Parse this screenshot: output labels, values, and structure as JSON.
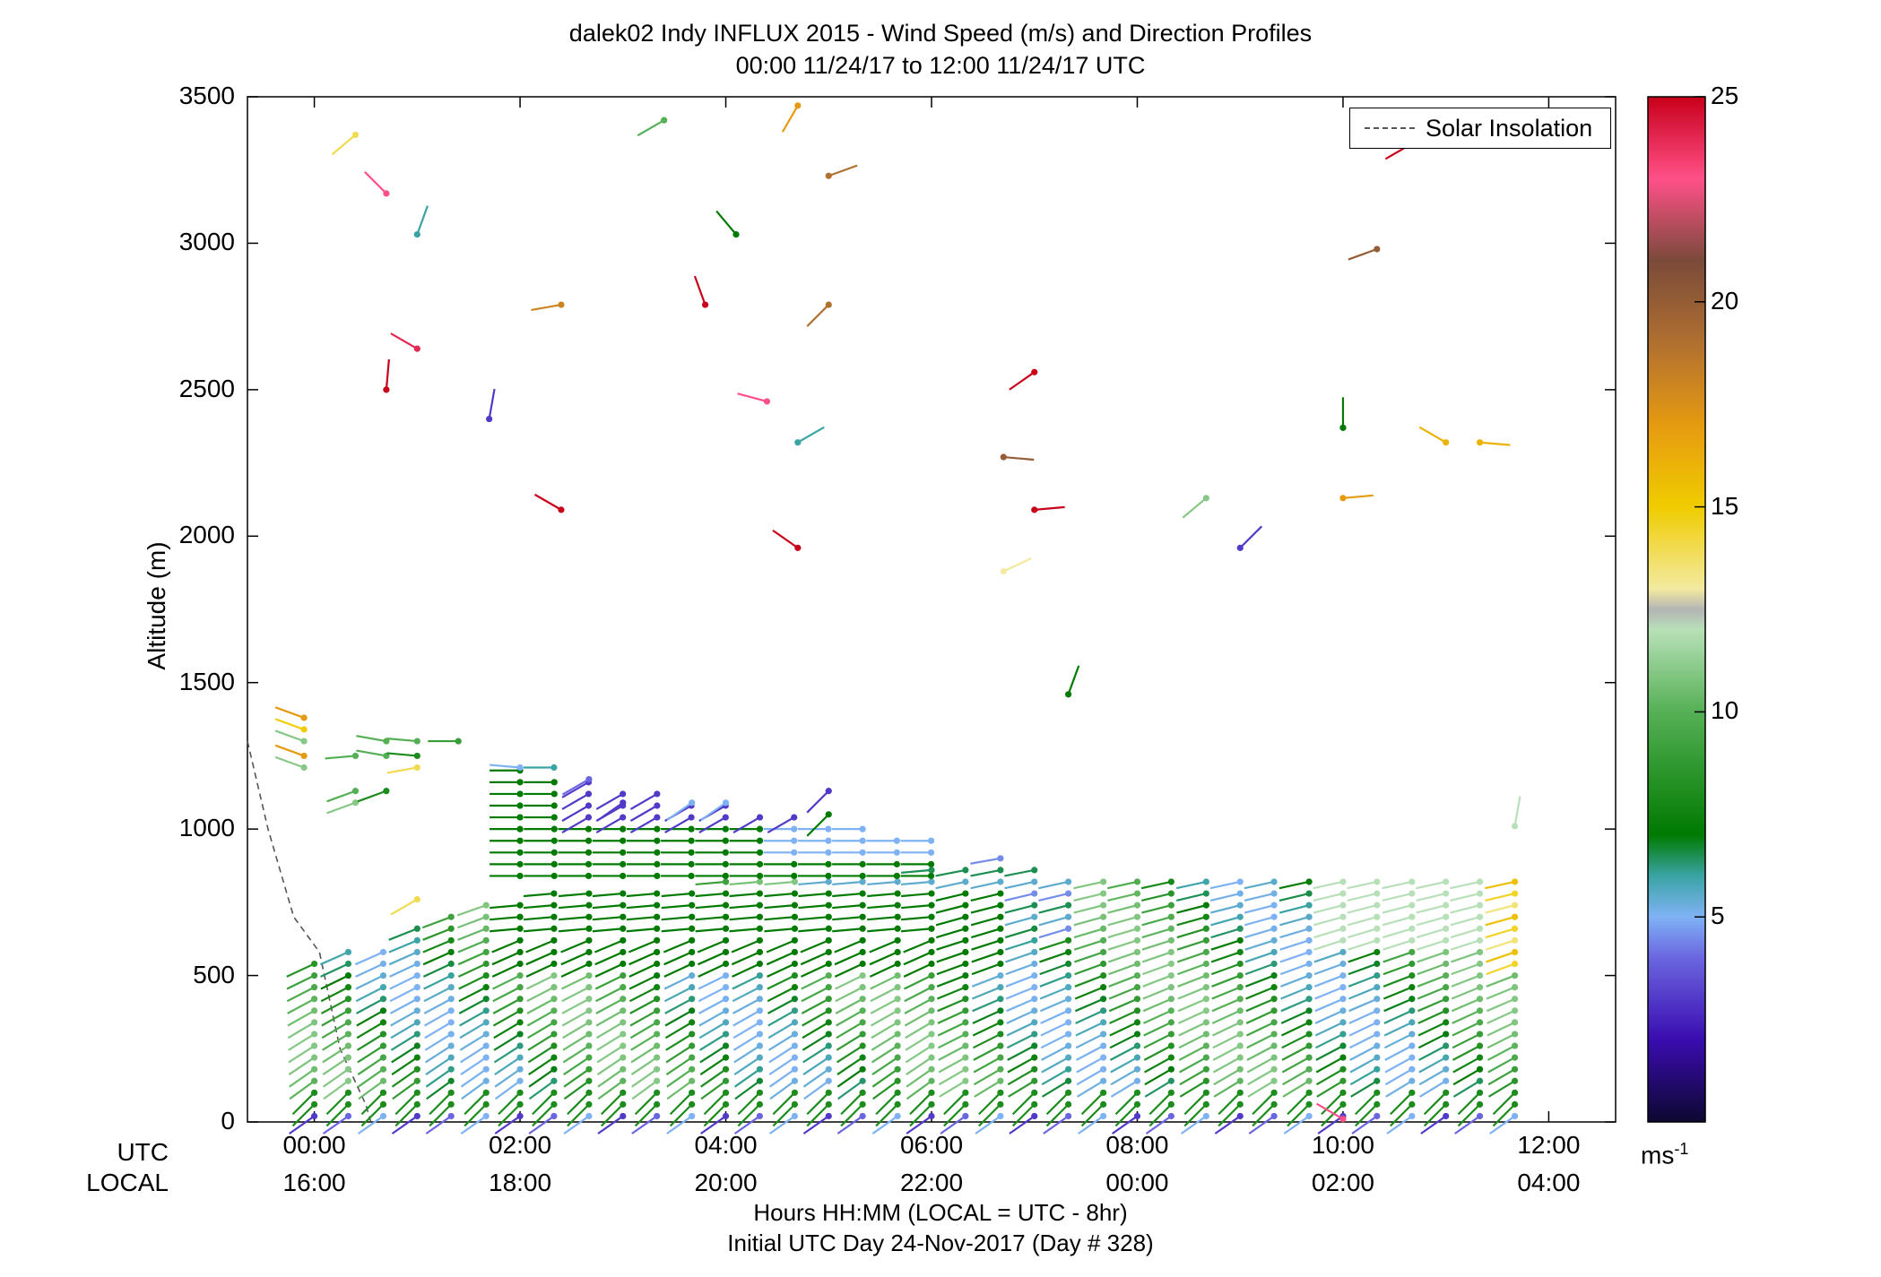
{
  "chart_data": {
    "type": "wind-barb-profile",
    "title": "dalek02 Indy INFLUX 2015 - Wind Speed (m/s) and Direction Profiles",
    "subtitle": "00:00 11/24/17 to 12:00 11/24/17  UTC",
    "ylabel": "Altitude (m)",
    "ylim": [
      0,
      3500
    ],
    "yticks": [
      "0",
      "500",
      "1000",
      "1500",
      "2000",
      "2500",
      "3000",
      "3500"
    ],
    "xlim_hours": [
      -0.65,
      12.65
    ],
    "xticks_utc": [
      "00:00",
      "02:00",
      "04:00",
      "06:00",
      "08:00",
      "10:00",
      "12:00"
    ],
    "xticks_local": [
      "16:00",
      "18:00",
      "20:00",
      "22:00",
      "00:00",
      "02:00",
      "04:00"
    ],
    "xrow_utc": "UTC",
    "xrow_local": "LOCAL",
    "xlabel": "Hours HH:MM  (LOCAL = UTC - 8hr)",
    "xlabel2": "Initial UTC Day 24-Nov-2017 (Day # 328)",
    "legend": {
      "label": "Solar Insolation",
      "placement": "top-right"
    },
    "colorbar": {
      "ticks": [
        "5",
        "10",
        "15",
        "20",
        "25"
      ],
      "range": [
        0,
        25
      ],
      "unit": "ms-1"
    },
    "colors": {
      "stops": [
        [
          "0",
          "#0d0830"
        ],
        [
          "2",
          "#3a0cb0"
        ],
        [
          "4",
          "#6b66e0"
        ],
        [
          "5",
          "#7fb2f5"
        ],
        [
          "6",
          "#3aa4a4"
        ],
        [
          "7",
          "#007a00"
        ],
        [
          "10",
          "#55b055"
        ],
        [
          "12",
          "#b8e0b8"
        ],
        [
          "12.5",
          "#b4b4b4"
        ],
        [
          "13",
          "#f2eaa0"
        ],
        [
          "15",
          "#f0cc00"
        ],
        [
          "17",
          "#e69a10"
        ],
        [
          "19",
          "#b07030"
        ],
        [
          "21",
          "#7a4a3a"
        ],
        [
          "23",
          "#ff5088"
        ],
        [
          "25",
          "#c8001a"
        ]
      ]
    },
    "solar_insolation_curve": [
      [
        -0.65,
        1300
      ],
      [
        -0.45,
        1000
      ],
      [
        -0.2,
        700
      ],
      [
        0.05,
        580
      ],
      [
        0.25,
        250
      ],
      [
        0.5,
        60
      ],
      [
        0.55,
        0
      ]
    ],
    "profile_times": [
      0.0,
      0.33,
      0.67,
      1.0,
      1.33,
      1.67,
      2.0,
      2.33,
      2.67,
      3.0,
      3.33,
      3.67,
      4.0,
      4.33,
      4.67,
      5.0,
      5.33,
      5.67,
      6.0,
      6.33,
      6.67,
      7.0,
      7.33,
      7.67,
      8.0,
      8.33,
      8.67,
      9.0,
      9.33,
      9.67,
      10.0,
      10.33,
      10.67,
      11.0,
      11.33,
      11.67
    ],
    "profile_tops": [
      560,
      610,
      610,
      680,
      700,
      740,
      760,
      780,
      790,
      800,
      810,
      810,
      820,
      820,
      820,
      830,
      830,
      840,
      860,
      880,
      900,
      870,
      850,
      830,
      830,
      830,
      830,
      820,
      820,
      820,
      820,
      820,
      820,
      820,
      820,
      830
    ],
    "low_level_spacing_m": 40,
    "isolated_barbs": [
      {
        "t": 0.4,
        "alt": 3370,
        "speed": 14,
        "dir": 230
      },
      {
        "t": 1.0,
        "alt": 3030,
        "speed": 6,
        "dir": 20
      },
      {
        "t": 0.7,
        "alt": 3170,
        "speed": 23,
        "dir": 315
      },
      {
        "t": 0.7,
        "alt": 2500,
        "speed": 25,
        "dir": 5
      },
      {
        "t": 1.0,
        "alt": 2640,
        "speed": 24,
        "dir": 300
      },
      {
        "t": 1.7,
        "alt": 2400,
        "speed": 3,
        "dir": 10
      },
      {
        "t": 2.4,
        "alt": 2790,
        "speed": 18,
        "dir": 260
      },
      {
        "t": 2.4,
        "alt": 2090,
        "speed": 25,
        "dir": 300
      },
      {
        "t": 3.4,
        "alt": 3420,
        "speed": 10,
        "dir": 240
      },
      {
        "t": 4.1,
        "alt": 3030,
        "speed": 7,
        "dir": 320
      },
      {
        "t": 3.8,
        "alt": 2790,
        "speed": 25,
        "dir": 340
      },
      {
        "t": 4.4,
        "alt": 2460,
        "speed": 23,
        "dir": 285
      },
      {
        "t": 4.7,
        "alt": 3470,
        "speed": 17,
        "dir": 210
      },
      {
        "t": 5.0,
        "alt": 3230,
        "speed": 19,
        "dir": 70
      },
      {
        "t": 5.0,
        "alt": 2790,
        "speed": 19,
        "dir": 225
      },
      {
        "t": 4.7,
        "alt": 2320,
        "speed": 6,
        "dir": 60
      },
      {
        "t": 4.7,
        "alt": 1960,
        "speed": 25,
        "dir": 305
      },
      {
        "t": 6.7,
        "alt": 2270,
        "speed": 20,
        "dir": 95
      },
      {
        "t": 7.0,
        "alt": 2560,
        "speed": 25,
        "dir": 235
      },
      {
        "t": 7.0,
        "alt": 2090,
        "speed": 25,
        "dir": 85
      },
      {
        "t": 6.7,
        "alt": 1880,
        "speed": 13,
        "dir": 65
      },
      {
        "t": 7.33,
        "alt": 1460,
        "speed": 7,
        "dir": 20
      },
      {
        "t": 8.67,
        "alt": 2130,
        "speed": 11,
        "dir": 230
      },
      {
        "t": 9.0,
        "alt": 1960,
        "speed": 3,
        "dir": 45
      },
      {
        "t": 10.0,
        "alt": 2370,
        "speed": 7,
        "dir": 0
      },
      {
        "t": 10.0,
        "alt": 2130,
        "speed": 17,
        "dir": 85
      },
      {
        "t": 10.33,
        "alt": 2980,
        "speed": 20,
        "dir": 250
      },
      {
        "t": 11.0,
        "alt": 2320,
        "speed": 16,
        "dir": 300
      },
      {
        "t": 11.33,
        "alt": 2320,
        "speed": 16,
        "dir": 95
      },
      {
        "t": 10.67,
        "alt": 3340,
        "speed": 25,
        "dir": 240
      },
      {
        "t": 11.67,
        "alt": 1010,
        "speed": 12,
        "dir": 10
      },
      {
        "t": 10.0,
        "alt": 10,
        "speed": 23,
        "dir": 300
      }
    ],
    "upper_layer_barbs": [
      {
        "t": -0.1,
        "alt": 1380,
        "speed": 17,
        "dir": 290
      },
      {
        "t": -0.1,
        "alt": 1340,
        "speed": 15,
        "dir": 290
      },
      {
        "t": -0.1,
        "alt": 1300,
        "speed": 11,
        "dir": 290
      },
      {
        "t": -0.1,
        "alt": 1250,
        "speed": 17,
        "dir": 290
      },
      {
        "t": -0.1,
        "alt": 1210,
        "speed": 11,
        "dir": 290
      },
      {
        "t": 0.4,
        "alt": 1250,
        "speed": 10,
        "dir": 265
      },
      {
        "t": 0.4,
        "alt": 1130,
        "speed": 10,
        "dir": 250
      },
      {
        "t": 0.4,
        "alt": 1090,
        "speed": 11,
        "dir": 250
      },
      {
        "t": 0.7,
        "alt": 1300,
        "speed": 10,
        "dir": 280
      },
      {
        "t": 0.7,
        "alt": 1250,
        "speed": 10,
        "dir": 280
      },
      {
        "t": 0.7,
        "alt": 1130,
        "speed": 8,
        "dir": 250
      },
      {
        "t": 1.0,
        "alt": 1300,
        "speed": 10,
        "dir": 275
      },
      {
        "t": 1.0,
        "alt": 1250,
        "speed": 8,
        "dir": 275
      },
      {
        "t": 1.0,
        "alt": 1210,
        "speed": 14,
        "dir": 260
      },
      {
        "t": 1.4,
        "alt": 1300,
        "speed": 9,
        "dir": 270
      },
      {
        "t": 1.0,
        "alt": 760,
        "speed": 14,
        "dir": 240
      },
      {
        "t": 2.33,
        "alt": 1210,
        "speed": 6,
        "dir": 270
      },
      {
        "t": 2.0,
        "alt": 1210,
        "speed": 5,
        "dir": 275
      },
      {
        "t": 2.67,
        "alt": 1170,
        "speed": 4,
        "dir": 240
      },
      {
        "t": 3.0,
        "alt": 1090,
        "speed": 3,
        "dir": 235
      },
      {
        "t": 3.67,
        "alt": 1090,
        "speed": 5,
        "dir": 235
      },
      {
        "t": 4.0,
        "alt": 1090,
        "speed": 5,
        "dir": 235
      },
      {
        "t": 5.0,
        "alt": 1130,
        "speed": 3,
        "dir": 225
      },
      {
        "t": 5.0,
        "alt": 1050,
        "speed": 7,
        "dir": 225
      }
    ]
  }
}
